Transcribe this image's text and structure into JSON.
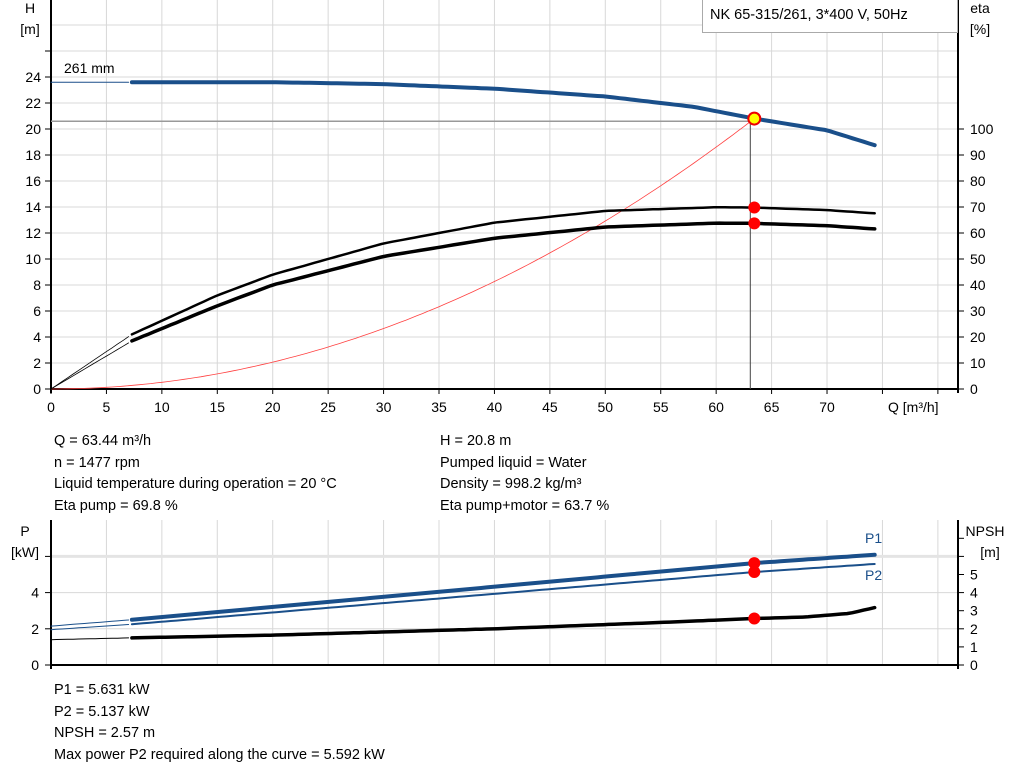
{
  "title": "NK 65-315/261, 3*400 V, 50Hz",
  "chart_data": [
    {
      "type": "line",
      "xlabel": "Q [m³/h]",
      "xlim": [
        0,
        80
      ],
      "xticks": [
        0,
        5,
        10,
        15,
        20,
        25,
        30,
        35,
        40,
        45,
        50,
        55,
        60,
        65,
        70
      ],
      "ylabel_left": "H",
      "yunit_left": "[m]",
      "ylim_left": [
        0,
        30
      ],
      "yticks_left": [
        0,
        2,
        4,
        6,
        8,
        10,
        12,
        14,
        16,
        18,
        20,
        22,
        24
      ],
      "ylabel_right": "eta",
      "yunit_right": "[%]",
      "ylim_right": [
        0,
        115
      ],
      "yticks_right": [
        0,
        10,
        20,
        30,
        40,
        50,
        60,
        70,
        80,
        90,
        100
      ],
      "grid": true,
      "annotation": "261 mm",
      "series": [
        {
          "id": "H",
          "axis": "left",
          "color": "#1a4f8a",
          "x": [
            0,
            7.3,
            20,
            30,
            40,
            50,
            58,
            63.44,
            70,
            74.5
          ],
          "y": [
            23.6,
            23.6,
            23.6,
            23.45,
            23.1,
            22.5,
            21.7,
            20.8,
            19.9,
            18.7
          ]
        },
        {
          "id": "eta_pump",
          "axis": "right",
          "color": "#000000",
          "x": [
            0,
            7.3,
            15,
            20,
            30,
            40,
            50,
            60,
            63.44,
            70,
            74.5
          ],
          "y": [
            0,
            21,
            36,
            44,
            56,
            64,
            68.5,
            69.9,
            69.8,
            68.8,
            67.5
          ]
        },
        {
          "id": "eta_pump_motor",
          "axis": "right",
          "color": "#000000",
          "x": [
            0,
            7.3,
            15,
            20,
            30,
            40,
            50,
            60,
            63.44,
            70,
            74.5
          ],
          "y": [
            0,
            18.5,
            32,
            40,
            51,
            58,
            62.3,
            63.8,
            63.7,
            62.8,
            61.5
          ]
        },
        {
          "id": "system",
          "axis": "left",
          "color": "#ff4040",
          "x": [
            0,
            63.44
          ],
          "y": [
            0,
            20.8
          ],
          "shape": "quadratic"
        }
      ],
      "operating_point": {
        "Q": 63.44,
        "H": 20.8,
        "eta_pump": 69.8,
        "eta_pump_motor": 63.7
      }
    },
    {
      "type": "line",
      "xlim": [
        0,
        80
      ],
      "ylabel_left": "P",
      "yunit_left": "[kW]",
      "ylim_left": [
        0,
        8
      ],
      "yticks_left": [
        0,
        2,
        4
      ],
      "ylabel_right": "NPSH",
      "yunit_right": "[m]",
      "ylim_right": [
        0,
        8
      ],
      "yticks_right": [
        0,
        1,
        2,
        3,
        4,
        5
      ],
      "grid": true,
      "series": [
        {
          "name": "P1",
          "color": "#1a4f8a",
          "x": [
            0,
            7.3,
            63.44,
            74.5
          ],
          "y": [
            2.15,
            2.5,
            5.631,
            6.1
          ]
        },
        {
          "name": "P2",
          "color": "#1a4f8a",
          "x": [
            0,
            7.3,
            63.44,
            74.5
          ],
          "y": [
            1.95,
            2.25,
            5.137,
            5.59
          ]
        },
        {
          "id": "NPSH",
          "color": "#000000",
          "x": [
            0,
            7.3,
            20,
            40,
            55,
            63.44,
            68,
            72,
            74.5
          ],
          "y": [
            1.4,
            1.5,
            1.65,
            2.0,
            2.35,
            2.57,
            2.65,
            2.85,
            3.2
          ]
        }
      ]
    }
  ],
  "info_top": {
    "left": [
      "Q = 63.44 m³/h",
      "n = 1477 rpm",
      "Liquid temperature during operation = 20 °C",
      "Eta pump = 69.8 %"
    ],
    "right": [
      "H = 20.8 m",
      "Pumped liquid = Water",
      "Density = 998.2 kg/m³",
      "Eta pump+motor = 63.7 %"
    ]
  },
  "info_bottom": [
    "P1 = 5.631 kW",
    "P2 = 5.137 kW",
    "NPSH = 2.57 m",
    "Max power P2 required along the curve = 5.592 kW"
  ]
}
